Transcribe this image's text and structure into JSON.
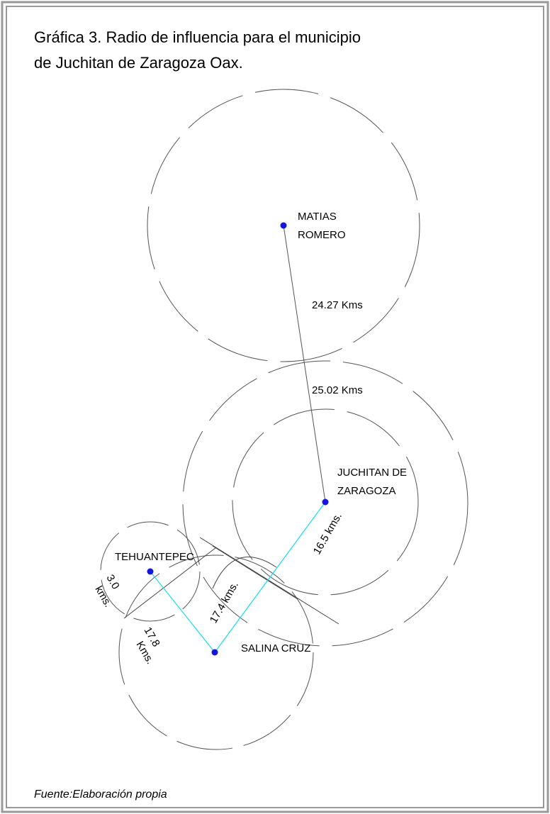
{
  "title": [
    "Gráfica 3. Radio de influencia para el municipio",
    "de Juchitan de Zaragoza Oax."
  ],
  "cities": [
    {
      "label": [
        "MATIAS",
        "ROMERO"
      ]
    },
    {
      "label": [
        "JUCHITAN DE",
        "ZARAGOZA"
      ]
    },
    {
      "label": [
        "TEHUANTEPEC"
      ]
    },
    {
      "label": [
        "SALINA CRUZ"
      ]
    }
  ],
  "distances": [
    {
      "label": [
        "24.27 Kms"
      ]
    },
    {
      "label": [
        "25.02 Kms"
      ]
    },
    {
      "label": [
        "16.5 kms."
      ]
    },
    {
      "label": [
        "17.4 kms."
      ]
    },
    {
      "label": [
        "3.0",
        "kms."
      ]
    },
    {
      "label": [
        "17.8",
        "Kms."
      ]
    }
  ],
  "source": "Fuente:Elaboración propia"
}
